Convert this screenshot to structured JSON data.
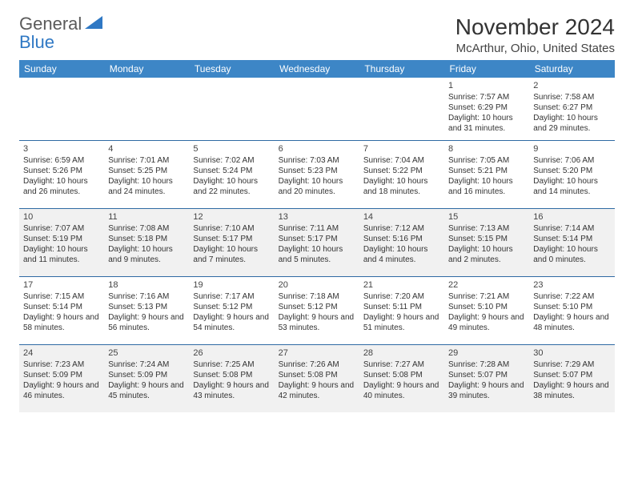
{
  "logo": {
    "line1": "General",
    "line2": "Blue"
  },
  "title": "November 2024",
  "location": "McArthur, Ohio, United States",
  "colors": {
    "header_bg": "#3d86c6",
    "header_text": "#ffffff",
    "row_divider": "#2f6aa3",
    "text": "#333333",
    "logo_grey": "#5a5a5a",
    "logo_blue": "#2f78c4",
    "alt_row_bg": "#f1f1f1"
  },
  "day_headers": [
    "Sunday",
    "Monday",
    "Tuesday",
    "Wednesday",
    "Thursday",
    "Friday",
    "Saturday"
  ],
  "weeks": [
    [
      null,
      null,
      null,
      null,
      null,
      {
        "n": "1",
        "sr": "Sunrise: 7:57 AM",
        "ss": "Sunset: 6:29 PM",
        "dl": "Daylight: 10 hours and 31 minutes."
      },
      {
        "n": "2",
        "sr": "Sunrise: 7:58 AM",
        "ss": "Sunset: 6:27 PM",
        "dl": "Daylight: 10 hours and 29 minutes."
      }
    ],
    [
      {
        "n": "3",
        "sr": "Sunrise: 6:59 AM",
        "ss": "Sunset: 5:26 PM",
        "dl": "Daylight: 10 hours and 26 minutes."
      },
      {
        "n": "4",
        "sr": "Sunrise: 7:01 AM",
        "ss": "Sunset: 5:25 PM",
        "dl": "Daylight: 10 hours and 24 minutes."
      },
      {
        "n": "5",
        "sr": "Sunrise: 7:02 AM",
        "ss": "Sunset: 5:24 PM",
        "dl": "Daylight: 10 hours and 22 minutes."
      },
      {
        "n": "6",
        "sr": "Sunrise: 7:03 AM",
        "ss": "Sunset: 5:23 PM",
        "dl": "Daylight: 10 hours and 20 minutes."
      },
      {
        "n": "7",
        "sr": "Sunrise: 7:04 AM",
        "ss": "Sunset: 5:22 PM",
        "dl": "Daylight: 10 hours and 18 minutes."
      },
      {
        "n": "8",
        "sr": "Sunrise: 7:05 AM",
        "ss": "Sunset: 5:21 PM",
        "dl": "Daylight: 10 hours and 16 minutes."
      },
      {
        "n": "9",
        "sr": "Sunrise: 7:06 AM",
        "ss": "Sunset: 5:20 PM",
        "dl": "Daylight: 10 hours and 14 minutes."
      }
    ],
    [
      {
        "n": "10",
        "sr": "Sunrise: 7:07 AM",
        "ss": "Sunset: 5:19 PM",
        "dl": "Daylight: 10 hours and 11 minutes."
      },
      {
        "n": "11",
        "sr": "Sunrise: 7:08 AM",
        "ss": "Sunset: 5:18 PM",
        "dl": "Daylight: 10 hours and 9 minutes."
      },
      {
        "n": "12",
        "sr": "Sunrise: 7:10 AM",
        "ss": "Sunset: 5:17 PM",
        "dl": "Daylight: 10 hours and 7 minutes."
      },
      {
        "n": "13",
        "sr": "Sunrise: 7:11 AM",
        "ss": "Sunset: 5:17 PM",
        "dl": "Daylight: 10 hours and 5 minutes."
      },
      {
        "n": "14",
        "sr": "Sunrise: 7:12 AM",
        "ss": "Sunset: 5:16 PM",
        "dl": "Daylight: 10 hours and 4 minutes."
      },
      {
        "n": "15",
        "sr": "Sunrise: 7:13 AM",
        "ss": "Sunset: 5:15 PM",
        "dl": "Daylight: 10 hours and 2 minutes."
      },
      {
        "n": "16",
        "sr": "Sunrise: 7:14 AM",
        "ss": "Sunset: 5:14 PM",
        "dl": "Daylight: 10 hours and 0 minutes."
      }
    ],
    [
      {
        "n": "17",
        "sr": "Sunrise: 7:15 AM",
        "ss": "Sunset: 5:14 PM",
        "dl": "Daylight: 9 hours and 58 minutes."
      },
      {
        "n": "18",
        "sr": "Sunrise: 7:16 AM",
        "ss": "Sunset: 5:13 PM",
        "dl": "Daylight: 9 hours and 56 minutes."
      },
      {
        "n": "19",
        "sr": "Sunrise: 7:17 AM",
        "ss": "Sunset: 5:12 PM",
        "dl": "Daylight: 9 hours and 54 minutes."
      },
      {
        "n": "20",
        "sr": "Sunrise: 7:18 AM",
        "ss": "Sunset: 5:12 PM",
        "dl": "Daylight: 9 hours and 53 minutes."
      },
      {
        "n": "21",
        "sr": "Sunrise: 7:20 AM",
        "ss": "Sunset: 5:11 PM",
        "dl": "Daylight: 9 hours and 51 minutes."
      },
      {
        "n": "22",
        "sr": "Sunrise: 7:21 AM",
        "ss": "Sunset: 5:10 PM",
        "dl": "Daylight: 9 hours and 49 minutes."
      },
      {
        "n": "23",
        "sr": "Sunrise: 7:22 AM",
        "ss": "Sunset: 5:10 PM",
        "dl": "Daylight: 9 hours and 48 minutes."
      }
    ],
    [
      {
        "n": "24",
        "sr": "Sunrise: 7:23 AM",
        "ss": "Sunset: 5:09 PM",
        "dl": "Daylight: 9 hours and 46 minutes."
      },
      {
        "n": "25",
        "sr": "Sunrise: 7:24 AM",
        "ss": "Sunset: 5:09 PM",
        "dl": "Daylight: 9 hours and 45 minutes."
      },
      {
        "n": "26",
        "sr": "Sunrise: 7:25 AM",
        "ss": "Sunset: 5:08 PM",
        "dl": "Daylight: 9 hours and 43 minutes."
      },
      {
        "n": "27",
        "sr": "Sunrise: 7:26 AM",
        "ss": "Sunset: 5:08 PM",
        "dl": "Daylight: 9 hours and 42 minutes."
      },
      {
        "n": "28",
        "sr": "Sunrise: 7:27 AM",
        "ss": "Sunset: 5:08 PM",
        "dl": "Daylight: 9 hours and 40 minutes."
      },
      {
        "n": "29",
        "sr": "Sunrise: 7:28 AM",
        "ss": "Sunset: 5:07 PM",
        "dl": "Daylight: 9 hours and 39 minutes."
      },
      {
        "n": "30",
        "sr": "Sunrise: 7:29 AM",
        "ss": "Sunset: 5:07 PM",
        "dl": "Daylight: 9 hours and 38 minutes."
      }
    ]
  ],
  "grey_rows": [
    2,
    4
  ]
}
